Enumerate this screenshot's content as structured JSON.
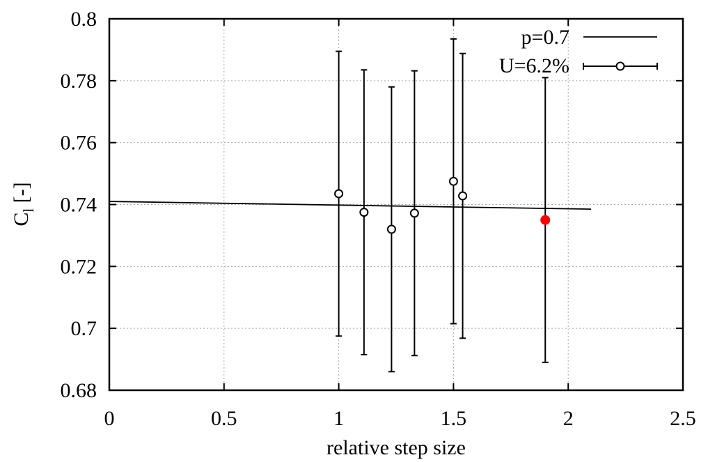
{
  "chart_data": {
    "type": "scatter",
    "xlabel": "relative step size",
    "ylabel_main": "C",
    "ylabel_sub": "l",
    "ylabel_rest": " [-]",
    "xlim": [
      0,
      2.5
    ],
    "ylim": [
      0.68,
      0.8
    ],
    "x_ticks": [
      0,
      0.5,
      1,
      1.5,
      2,
      2.5
    ],
    "x_tick_labels": [
      "0",
      "0.5",
      "1",
      "1.5",
      "2",
      "2.5"
    ],
    "y_ticks": [
      0.68,
      0.7,
      0.72,
      0.74,
      0.76,
      0.78,
      0.8
    ],
    "y_tick_labels": [
      "0.68",
      "0.7",
      "0.72",
      "0.74",
      "0.76",
      "0.78",
      "0.8"
    ],
    "grid": true,
    "legend_position": "top-right",
    "series": [
      {
        "name": "p=0.7",
        "kind": "line",
        "color": "#000000",
        "x": [
          0,
          2.1
        ],
        "y": [
          0.741,
          0.7385
        ]
      },
      {
        "name": "U=6.2%",
        "kind": "errorbar",
        "marker": "open-circle",
        "color": "#000000",
        "x": [
          1.0,
          1.11,
          1.23,
          1.33,
          1.5,
          1.54,
          1.9
        ],
        "y": [
          0.7435,
          0.7375,
          0.732,
          0.7372,
          0.7475,
          0.7428,
          0.735
        ],
        "yerr_low": [
          0.6975,
          0.6915,
          0.686,
          0.6912,
          0.7015,
          0.6968,
          0.689
        ],
        "yerr_high": [
          0.7895,
          0.7835,
          0.778,
          0.7832,
          0.7935,
          0.7888,
          0.781
        ]
      }
    ],
    "highlight_point": {
      "x": 1.9,
      "y": 0.735,
      "color": "#ff0000"
    }
  }
}
